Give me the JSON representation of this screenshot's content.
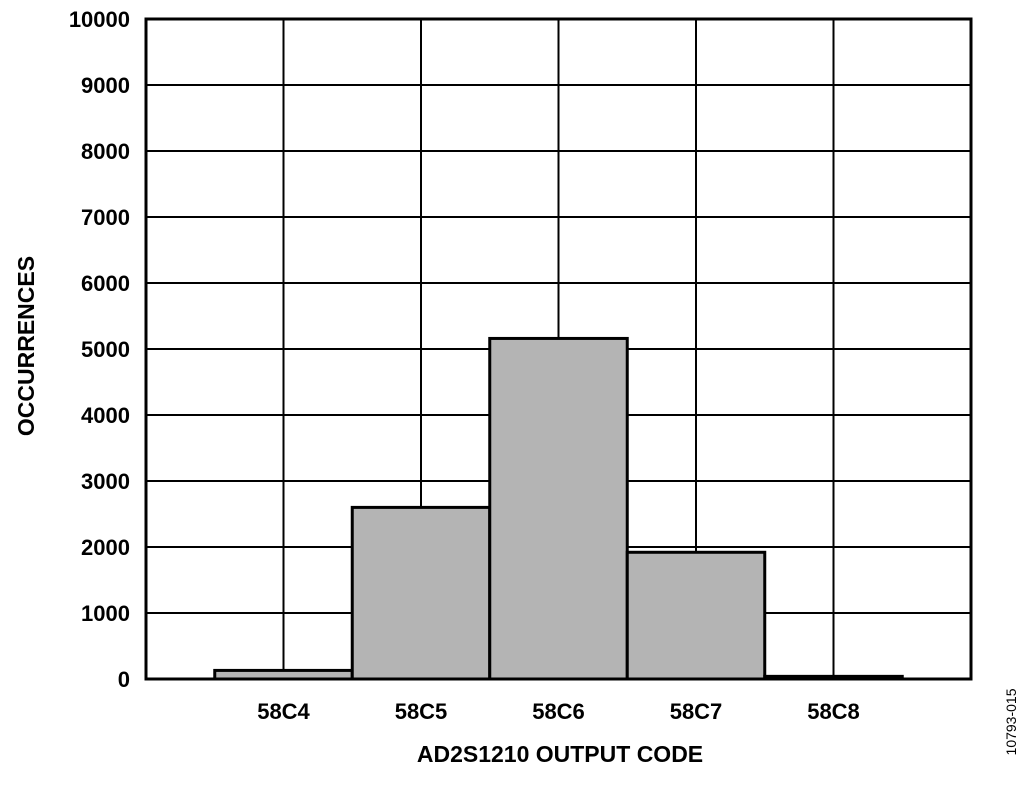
{
  "chart_data": {
    "type": "bar",
    "categories": [
      "58C4",
      "58C5",
      "58C6",
      "58C7",
      "58C8"
    ],
    "values": [
      130,
      2600,
      5160,
      1920,
      40
    ],
    "xlabel": "AD2S1210 OUTPUT CODE",
    "ylabel": "OCCURRENCES",
    "ylim": [
      0,
      10000
    ],
    "yticks": [
      0,
      1000,
      2000,
      3000,
      4000,
      5000,
      6000,
      7000,
      8000,
      9000,
      10000
    ],
    "grid": true,
    "bar_color": "#b4b4b4",
    "edge_color": "#000000"
  },
  "figure_id": "10793-015"
}
